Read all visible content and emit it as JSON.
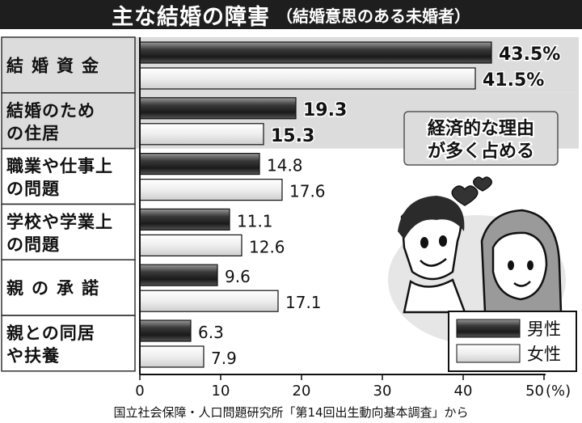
{
  "chart_data": {
    "type": "bar",
    "orientation": "horizontal",
    "title": "主な結婚の障害",
    "subtitle": "（結婚意思のある未婚者）",
    "categories": [
      [
        "結婚資金"
      ],
      [
        "結婚のため",
        "の住居"
      ],
      [
        "職業や仕事上",
        "の問題"
      ],
      [
        "学校や学業上",
        "の問題"
      ],
      [
        "親の承諾"
      ],
      [
        "親との同居",
        "や扶養"
      ]
    ],
    "series": [
      {
        "name": "男性",
        "values": [
          43.5,
          19.3,
          14.8,
          11.1,
          9.6,
          6.3
        ]
      },
      {
        "name": "女性",
        "values": [
          41.5,
          15.3,
          17.6,
          12.6,
          17.1,
          7.9
        ]
      }
    ],
    "value_labels": {
      "男性": [
        "43.5%",
        "19.3",
        "14.8",
        "11.1",
        "9.6",
        "6.3"
      ],
      "女性": [
        "41.5%",
        "15.3",
        "17.6",
        "12.6",
        "17.1",
        "7.9"
      ]
    },
    "highlighted_categories": [
      0,
      1
    ],
    "x_ticks": [
      "0",
      "10",
      "20",
      "30",
      "40",
      "50"
    ],
    "x_unit": "(%)",
    "xlim": [
      0,
      50
    ],
    "legend_position": "bottom-right",
    "annotation": [
      "経済的な理由",
      "が多く占める"
    ],
    "source": "国立社会保障・人口問題研究所「第14回出生動向基本調査」から",
    "colors": {
      "male_bar": "#3a3a3a",
      "female_bar": "#f2f2f2",
      "highlight_bg": "#dcdcdc",
      "title_bg": "#1e1e1e"
    }
  }
}
